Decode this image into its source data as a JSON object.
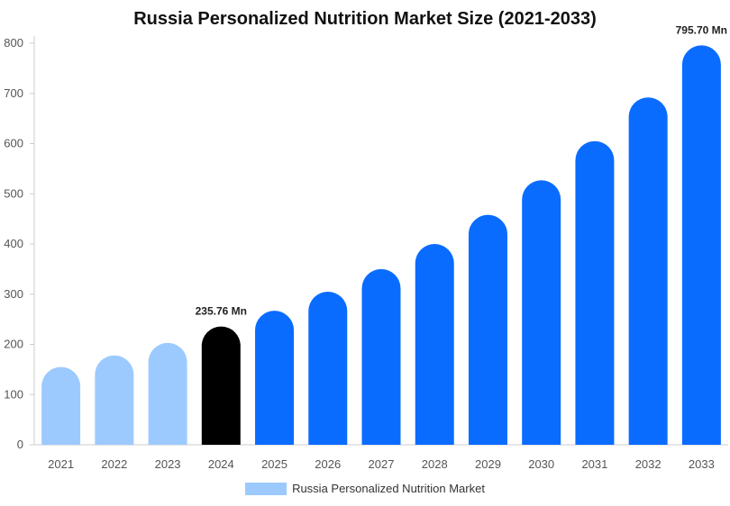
{
  "chart_data": {
    "type": "bar",
    "title": "Russia Personalized Nutrition Market Size (2021-2033)",
    "categories": [
      "2021",
      "2022",
      "2023",
      "2024",
      "2025",
      "2026",
      "2027",
      "2028",
      "2029",
      "2030",
      "2031",
      "2032",
      "2033"
    ],
    "series": [
      {
        "name": "Russia Personalized Nutrition Market",
        "values": [
          155,
          178,
          203,
          235.76,
          267,
          305,
          350,
          400,
          458,
          527,
          605,
          692,
          795.7
        ]
      }
    ],
    "annotations": [
      {
        "category": "2024",
        "text": "235.76 Mn"
      },
      {
        "category": "2033",
        "text": "795.70 Mn"
      }
    ],
    "ylim": [
      0,
      800
    ],
    "yticks": [
      0,
      100,
      200,
      300,
      400,
      500,
      600,
      700,
      800
    ],
    "grid": false,
    "legend": "bottom",
    "colors": {
      "historic": "#9ccaff",
      "base_year": "#000000",
      "forecast": "#0a6cff",
      "axis": "#cccccc",
      "tick_text": "#555555"
    },
    "bar_color_by_category": [
      "historic",
      "historic",
      "historic",
      "base_year",
      "forecast",
      "forecast",
      "forecast",
      "forecast",
      "forecast",
      "forecast",
      "forecast",
      "forecast",
      "forecast"
    ]
  }
}
